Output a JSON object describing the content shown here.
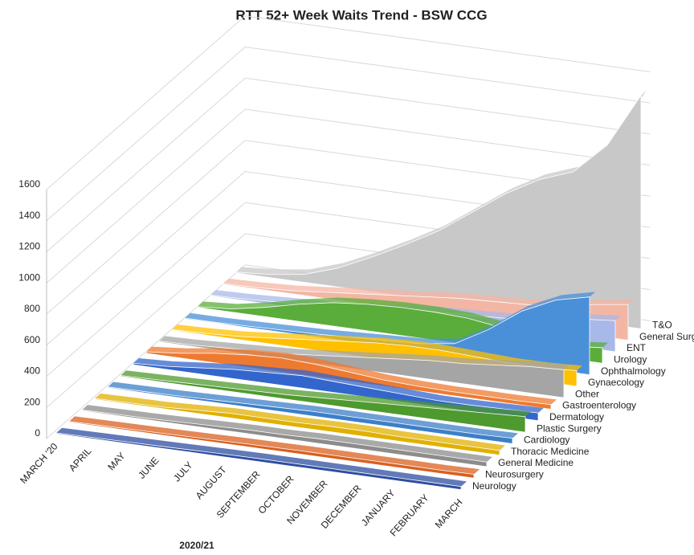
{
  "chart_data": {
    "type": "area3d",
    "title": "RTT 52+ Week Waits Trend - BSW CCG",
    "x_label": "2020/21",
    "categories": [
      "MARCH '20",
      "APRIL",
      "MAY",
      "JUNE",
      "JULY",
      "AUGUST",
      "SEPTEMBER",
      "OCTOBER",
      "NOVEMBER",
      "DECEMBER",
      "JANUARY",
      "FEBRUARY",
      "MARCH"
    ],
    "ylim": [
      0,
      1600
    ],
    "yticks": [
      0,
      200,
      400,
      600,
      800,
      1000,
      1200,
      1400,
      1600
    ],
    "grid": true,
    "series": [
      {
        "name": "Neurology",
        "color": "#2e4ea0",
        "values": [
          5,
          8,
          10,
          12,
          15,
          18,
          20,
          20,
          20,
          20,
          20,
          20,
          20
        ]
      },
      {
        "name": "Neurosurgery",
        "color": "#d9601f",
        "values": [
          5,
          8,
          10,
          12,
          15,
          18,
          20,
          22,
          22,
          22,
          22,
          22,
          25
        ]
      },
      {
        "name": "General Medicine",
        "color": "#8c8c8c",
        "values": [
          5,
          8,
          10,
          15,
          20,
          25,
          25,
          30,
          30,
          30,
          30,
          30,
          30
        ]
      },
      {
        "name": "Thoracic Medicine",
        "color": "#e0b000",
        "values": [
          5,
          8,
          10,
          20,
          30,
          30,
          30,
          35,
          35,
          30,
          30,
          30,
          30
        ]
      },
      {
        "name": "Cardiology",
        "color": "#3c7fc8",
        "values": [
          5,
          8,
          10,
          15,
          20,
          25,
          30,
          30,
          30,
          30,
          30,
          30,
          35
        ]
      },
      {
        "name": "Plastic Surgery",
        "color": "#4e9a2e",
        "values": [
          5,
          10,
          15,
          20,
          25,
          30,
          40,
          50,
          60,
          70,
          80,
          90,
          100
        ]
      },
      {
        "name": "Dermatology",
        "color": "#3366cc",
        "values": [
          10,
          20,
          40,
          60,
          70,
          80,
          70,
          60,
          50,
          40,
          40,
          45,
          50
        ]
      },
      {
        "name": "Gastroenterology",
        "color": "#ee7a30",
        "values": [
          10,
          30,
          60,
          80,
          90,
          80,
          60,
          40,
          30,
          25,
          25,
          25,
          30
        ]
      },
      {
        "name": "Other",
        "color": "#a5a5a5",
        "values": [
          5,
          10,
          20,
          30,
          40,
          60,
          80,
          100,
          120,
          130,
          150,
          170,
          180
        ]
      },
      {
        "name": "Gynaecology",
        "color": "#ffc000",
        "values": [
          5,
          10,
          20,
          40,
          60,
          80,
          100,
          110,
          110,
          100,
          90,
          90,
          100
        ]
      },
      {
        "name": "Ophthalmology",
        "color": "#4a90d8",
        "values": [
          5,
          5,
          10,
          15,
          20,
          30,
          40,
          50,
          80,
          200,
          350,
          450,
          500
        ]
      },
      {
        "name": "Urology",
        "color": "#5aad3a",
        "values": [
          5,
          20,
          60,
          110,
          150,
          170,
          180,
          180,
          170,
          140,
          100,
          80,
          100
        ]
      },
      {
        "name": "ENT",
        "color": "#a8b8e8",
        "values": [
          5,
          10,
          20,
          30,
          40,
          60,
          90,
          100,
          110,
          120,
          150,
          180,
          200
        ]
      },
      {
        "name": "General Surgery",
        "color": "#f4b6a4",
        "values": [
          5,
          10,
          20,
          40,
          60,
          80,
          100,
          120,
          130,
          140,
          160,
          200,
          230
        ]
      },
      {
        "name": "T&O",
        "color": "#c8c8c8",
        "values": [
          5,
          20,
          50,
          120,
          220,
          330,
          450,
          600,
          750,
          870,
          950,
          1150,
          1500
        ]
      }
    ]
  }
}
